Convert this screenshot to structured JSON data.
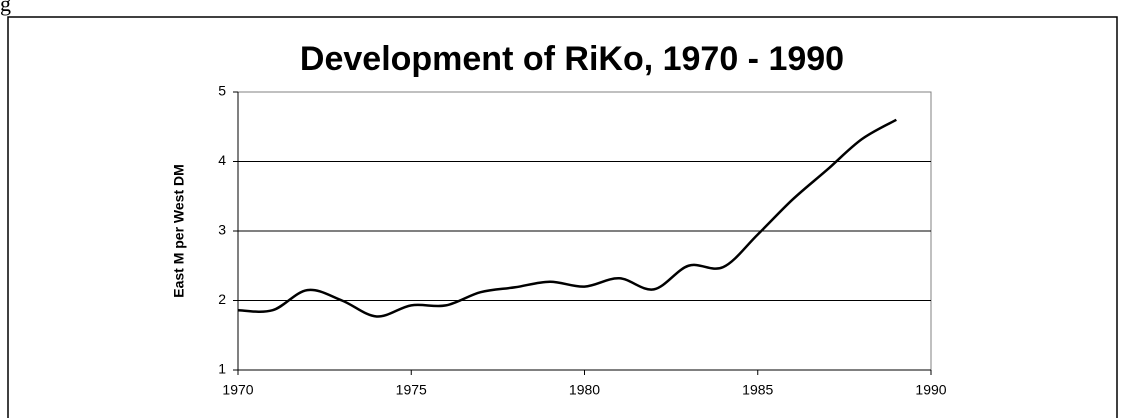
{
  "caption_fragment": "g",
  "chart_data": {
    "type": "line",
    "title": "Development of RiKo, 1970 - 1990",
    "y_label": "East M per West DM",
    "x": [
      1970,
      1971,
      1972,
      1973,
      1974,
      1975,
      1976,
      1977,
      1978,
      1979,
      1980,
      1981,
      1982,
      1983,
      1984,
      1985,
      1986,
      1987,
      1988,
      1989
    ],
    "series": [
      {
        "name": "RiKo",
        "color": "#000000",
        "values": [
          1.86,
          1.86,
          2.15,
          2.0,
          1.77,
          1.93,
          1.93,
          2.12,
          2.19,
          2.27,
          2.2,
          2.32,
          2.16,
          2.5,
          2.48,
          2.95,
          3.45,
          3.88,
          4.32,
          4.6
        ]
      }
    ],
    "xlim": [
      1970,
      1990
    ],
    "xticks": [
      1970,
      1975,
      1980,
      1985,
      1990
    ],
    "ylim": [
      1,
      5
    ],
    "yticks": [
      1,
      2,
      3,
      4,
      5
    ],
    "grid": true
  }
}
